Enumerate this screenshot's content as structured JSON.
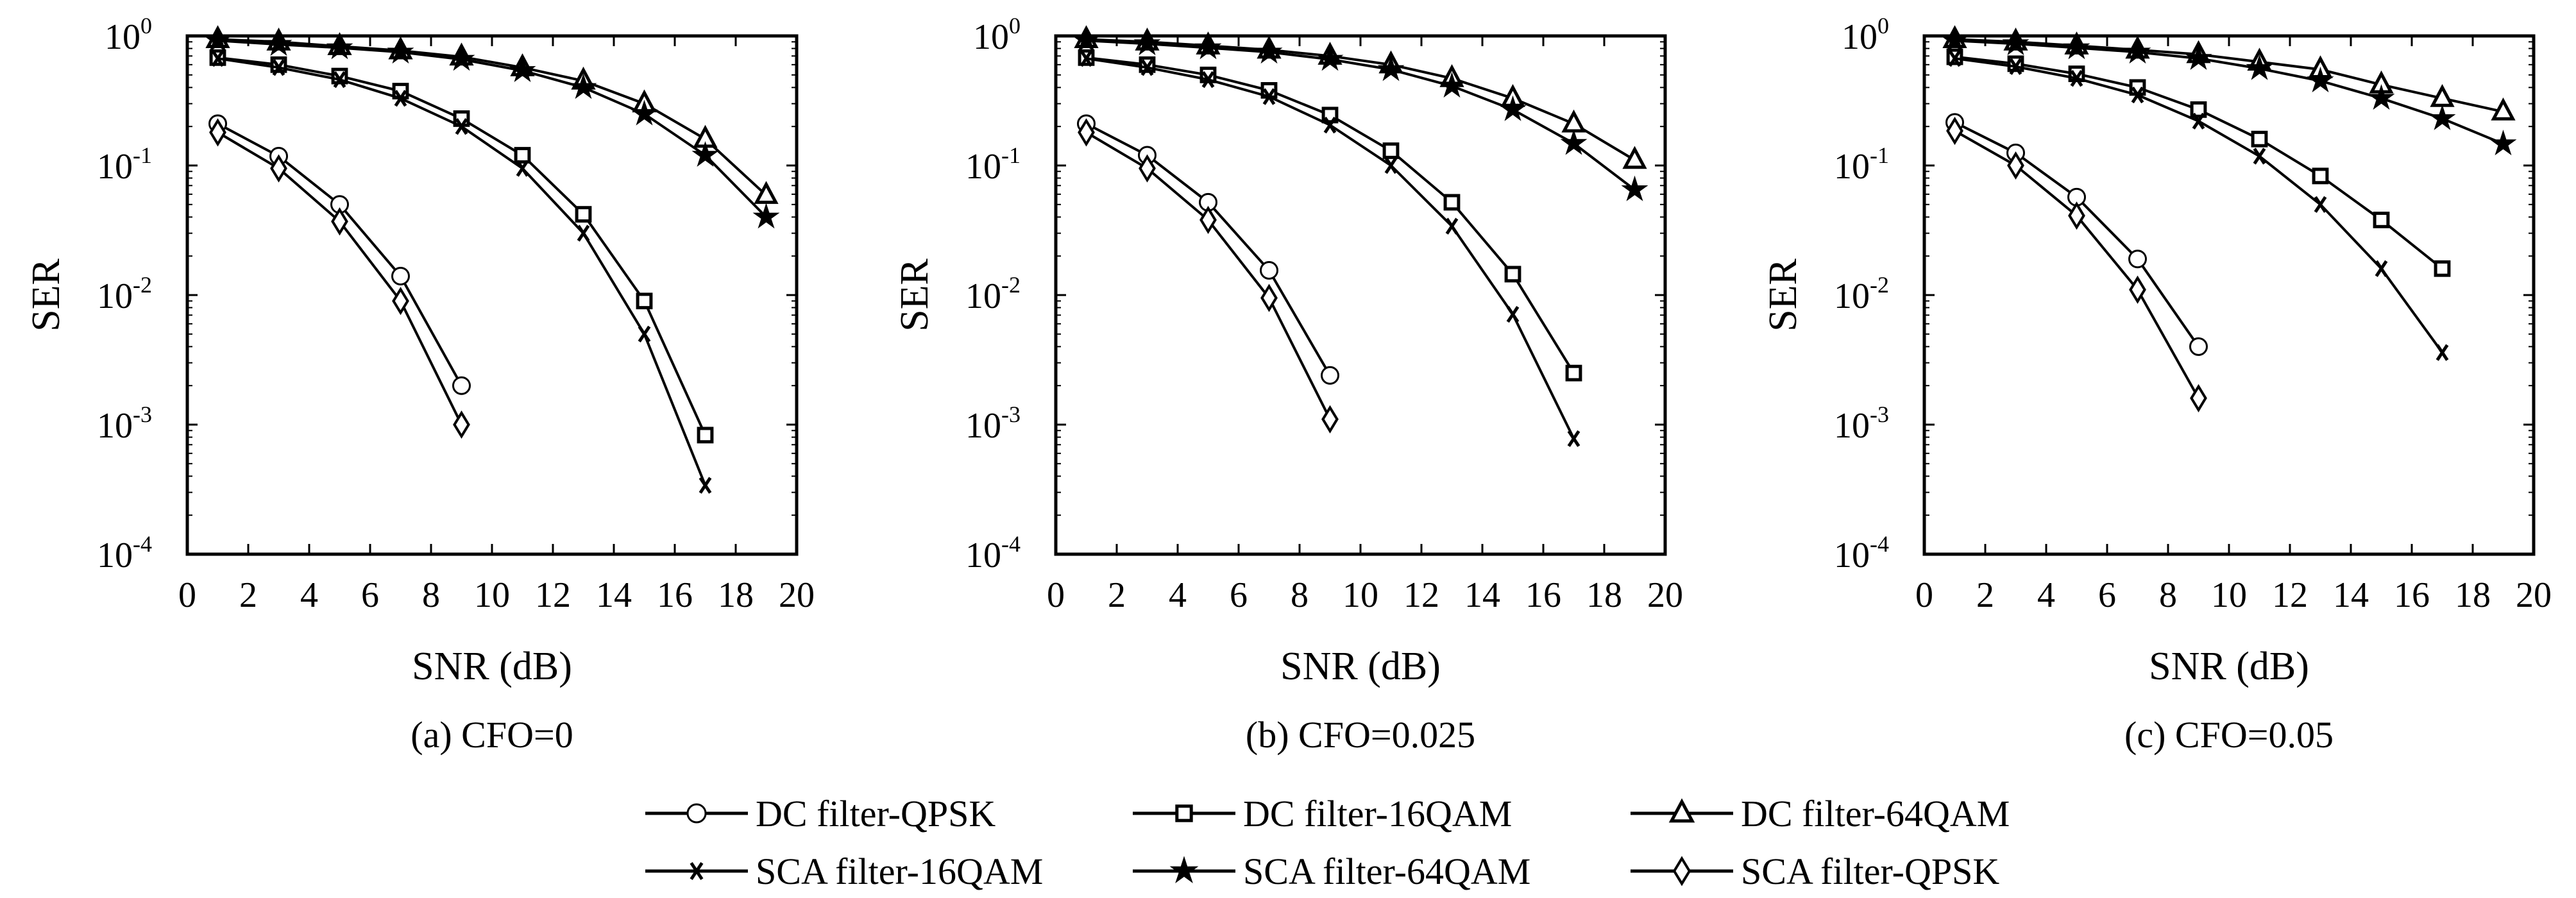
{
  "legend": [
    {
      "label": "DC filter-QPSK",
      "marker": "circle"
    },
    {
      "label": "DC filter-16QAM",
      "marker": "square"
    },
    {
      "label": "DC filter-64QAM",
      "marker": "triangle"
    },
    {
      "label": "SCA filter-16QAM",
      "marker": "x"
    },
    {
      "label": "SCA filter-64QAM",
      "marker": "star"
    },
    {
      "label": "SCA filter-QPSK",
      "marker": "diamond"
    }
  ],
  "chart_data": [
    {
      "type": "line",
      "caption": "(a) CFO=0",
      "xlabel": "SNR (dB)",
      "ylabel": "SER",
      "yscale": "log",
      "xlim": [
        0,
        20
      ],
      "ylim": [
        0.0001,
        1
      ],
      "x_ticks": [
        "0",
        "2",
        "4",
        "6",
        "8",
        "10",
        "12",
        "14",
        "16",
        "18",
        "20"
      ],
      "y_ticks": [
        {
          "base": "10",
          "exp": "0"
        },
        {
          "base": "10",
          "exp": "-1"
        },
        {
          "base": "10",
          "exp": "-2"
        },
        {
          "base": "10",
          "exp": "-3"
        },
        {
          "base": "10",
          "exp": "-4"
        }
      ],
      "series": [
        {
          "name": "DC filter-QPSK",
          "marker": "circle",
          "x": [
            1,
            3,
            5,
            7,
            9
          ],
          "values": [
            0.21,
            0.118,
            0.05,
            0.014,
            0.002
          ]
        },
        {
          "name": "DC filter-16QAM",
          "marker": "square",
          "x": [
            1,
            3,
            5,
            7,
            9,
            11,
            13,
            15,
            17
          ],
          "values": [
            0.68,
            0.6,
            0.49,
            0.375,
            0.23,
            0.12,
            0.042,
            0.009,
            0.00083
          ]
        },
        {
          "name": "DC filter-64QAM",
          "marker": "triangle",
          "x": [
            1,
            3,
            5,
            7,
            9,
            11,
            13,
            15,
            17,
            19
          ],
          "values": [
            0.94,
            0.9,
            0.83,
            0.77,
            0.69,
            0.57,
            0.45,
            0.3,
            0.16,
            0.059
          ]
        },
        {
          "name": "SCA filter-16QAM",
          "marker": "x",
          "x": [
            1,
            3,
            5,
            7,
            9,
            11,
            13,
            15,
            17
          ],
          "values": [
            0.67,
            0.57,
            0.46,
            0.33,
            0.2,
            0.095,
            0.03,
            0.005,
            0.00034
          ]
        },
        {
          "name": "SCA filter-64QAM",
          "marker": "star",
          "x": [
            1,
            3,
            5,
            7,
            9,
            11,
            13,
            15,
            17,
            19
          ],
          "values": [
            0.92,
            0.86,
            0.81,
            0.75,
            0.66,
            0.54,
            0.4,
            0.25,
            0.12,
            0.04
          ]
        },
        {
          "name": "SCA filter-QPSK",
          "marker": "diamond",
          "x": [
            1,
            3,
            5,
            7,
            9
          ],
          "values": [
            0.18,
            0.095,
            0.037,
            0.009,
            0.001
          ]
        }
      ]
    },
    {
      "type": "line",
      "caption": "(b) CFO=0.025",
      "xlabel": "SNR (dB)",
      "ylabel": "SER",
      "yscale": "log",
      "xlim": [
        0,
        20
      ],
      "ylim": [
        0.0001,
        1
      ],
      "x_ticks": [
        "0",
        "2",
        "4",
        "6",
        "8",
        "10",
        "12",
        "14",
        "16",
        "18",
        "20"
      ],
      "y_ticks": [
        {
          "base": "10",
          "exp": "0"
        },
        {
          "base": "10",
          "exp": "-1"
        },
        {
          "base": "10",
          "exp": "-2"
        },
        {
          "base": "10",
          "exp": "-3"
        },
        {
          "base": "10",
          "exp": "-4"
        }
      ],
      "series": [
        {
          "name": "DC filter-QPSK",
          "marker": "circle",
          "x": [
            1,
            3,
            5,
            7,
            9
          ],
          "values": [
            0.21,
            0.12,
            0.052,
            0.0155,
            0.0024
          ]
        },
        {
          "name": "DC filter-16QAM",
          "marker": "square",
          "x": [
            1,
            3,
            5,
            7,
            9,
            11,
            13,
            15,
            17
          ],
          "values": [
            0.68,
            0.6,
            0.5,
            0.38,
            0.245,
            0.13,
            0.052,
            0.0145,
            0.0025
          ]
        },
        {
          "name": "DC filter-64QAM",
          "marker": "triangle",
          "x": [
            1,
            3,
            5,
            7,
            9,
            11,
            13,
            15,
            17,
            19
          ],
          "values": [
            0.94,
            0.9,
            0.84,
            0.78,
            0.7,
            0.6,
            0.47,
            0.33,
            0.21,
            0.11
          ]
        },
        {
          "name": "SCA filter-16QAM",
          "marker": "x",
          "x": [
            1,
            3,
            5,
            7,
            9,
            11,
            13,
            15,
            17
          ],
          "values": [
            0.67,
            0.57,
            0.46,
            0.34,
            0.205,
            0.1,
            0.034,
            0.0071,
            0.00078
          ]
        },
        {
          "name": "SCA filter-64QAM",
          "marker": "star",
          "x": [
            1,
            3,
            5,
            7,
            9,
            11,
            13,
            15,
            17,
            19
          ],
          "values": [
            0.92,
            0.87,
            0.81,
            0.75,
            0.66,
            0.55,
            0.41,
            0.27,
            0.148,
            0.065
          ]
        },
        {
          "name": "SCA filter-QPSK",
          "marker": "diamond",
          "x": [
            1,
            3,
            5,
            7,
            9
          ],
          "values": [
            0.18,
            0.095,
            0.038,
            0.0095,
            0.0011
          ]
        }
      ]
    },
    {
      "type": "line",
      "caption": "(c) CFO=0.05",
      "xlabel": "SNR (dB)",
      "ylabel": "SER",
      "yscale": "log",
      "xlim": [
        0,
        20
      ],
      "ylim": [
        0.0001,
        1
      ],
      "x_ticks": [
        "0",
        "2",
        "4",
        "6",
        "8",
        "10",
        "12",
        "14",
        "16",
        "18",
        "20"
      ],
      "y_ticks": [
        {
          "base": "10",
          "exp": "0"
        },
        {
          "base": "10",
          "exp": "-1"
        },
        {
          "base": "10",
          "exp": "-2"
        },
        {
          "base": "10",
          "exp": "-3"
        },
        {
          "base": "10",
          "exp": "-4"
        }
      ],
      "series": [
        {
          "name": "DC filter-QPSK",
          "marker": "circle",
          "x": [
            1,
            3,
            5,
            7,
            9
          ],
          "values": [
            0.215,
            0.125,
            0.057,
            0.019,
            0.004
          ]
        },
        {
          "name": "DC filter-16QAM",
          "marker": "square",
          "x": [
            1,
            3,
            5,
            7,
            9,
            11,
            13,
            15,
            17
          ],
          "values": [
            0.69,
            0.61,
            0.51,
            0.4,
            0.27,
            0.16,
            0.083,
            0.038,
            0.016
          ]
        },
        {
          "name": "DC filter-64QAM",
          "marker": "triangle",
          "x": [
            1,
            3,
            5,
            7,
            9,
            11,
            13,
            15,
            17,
            19
          ],
          "values": [
            0.94,
            0.9,
            0.84,
            0.78,
            0.72,
            0.63,
            0.55,
            0.42,
            0.33,
            0.26
          ]
        },
        {
          "name": "SCA filter-16QAM",
          "marker": "x",
          "x": [
            1,
            3,
            5,
            7,
            9,
            11,
            13,
            15,
            17
          ],
          "values": [
            0.67,
            0.58,
            0.47,
            0.35,
            0.22,
            0.118,
            0.05,
            0.016,
            0.0036
          ]
        },
        {
          "name": "SCA filter-64QAM",
          "marker": "star",
          "x": [
            1,
            3,
            5,
            7,
            9,
            11,
            13,
            15,
            17,
            19
          ],
          "values": [
            0.92,
            0.87,
            0.81,
            0.75,
            0.67,
            0.56,
            0.45,
            0.33,
            0.23,
            0.147
          ]
        },
        {
          "name": "SCA filter-QPSK",
          "marker": "diamond",
          "x": [
            1,
            3,
            5,
            7,
            9
          ],
          "values": [
            0.185,
            0.1,
            0.041,
            0.011,
            0.0016
          ]
        }
      ]
    }
  ]
}
